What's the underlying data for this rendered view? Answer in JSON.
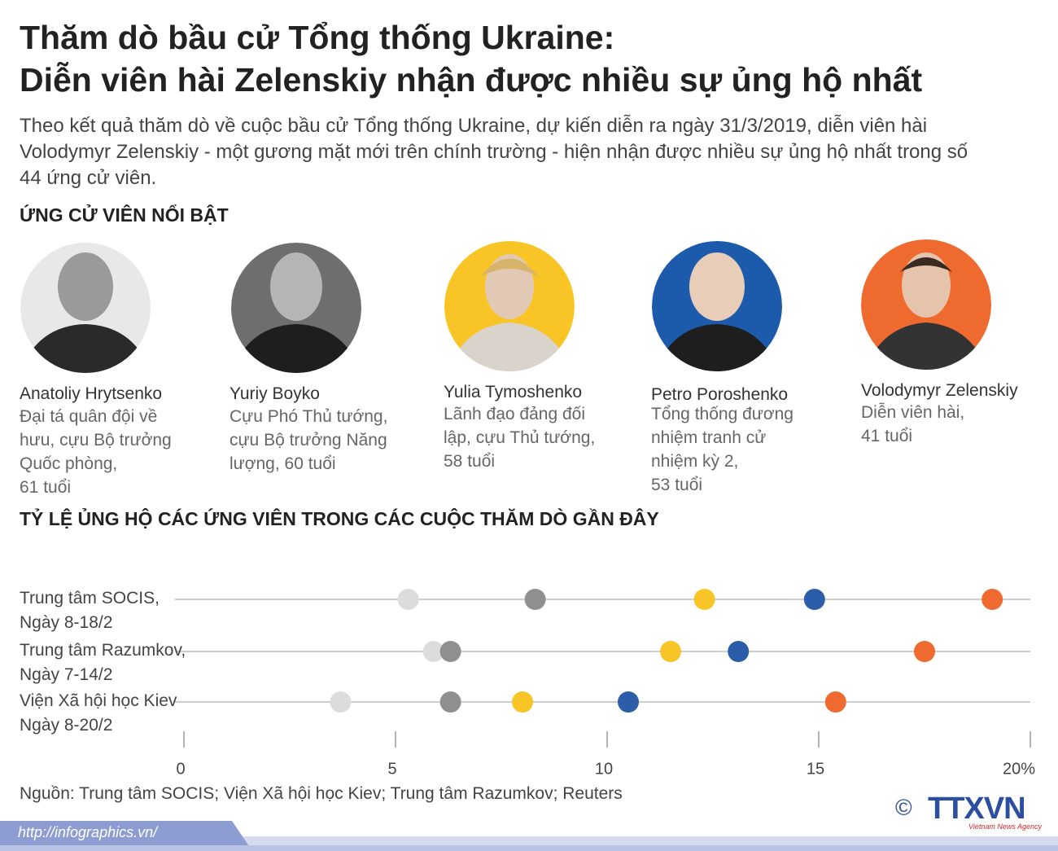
{
  "header": {
    "title": "Thăm dò bầu cử Tổng thống Ukraine:\nDiễn viên hài Zelenskiy nhận được nhiều sự ủng hộ nhất",
    "intro": "Theo kết quả thăm dò về cuộc bầu cử Tổng thống Ukraine, dự kiến diễn ra ngày 31/3/2019, diễn viên hài\nVolodymyr Zelenskiy - một gương mặt mới trên chính trường - hiện nhận được nhiều sự ủng hộ nhất trong số\n44 ứng cử viên."
  },
  "candidates_heading": "ỨNG CỬ VIÊN NỔI BẬT",
  "candidates": [
    {
      "description": "Đại tá quân đội về\nhưu, cựu Bộ trưởng\nQuốc phòng,\n61 tuổi"
    },
    {
      "description": "Cựu Phó Thủ tướng,\ncựu Bộ trưởng Năng\nlượng, 60 tuổi"
    },
    {
      "description": "Lãnh đạo đảng đối\nlập, cựu Thủ tướng,\n58 tuổi"
    },
    {
      "description": "Tổng thống đương\nnhiệm tranh cử\nnhiệm kỳ 2,\n53 tuổi"
    },
    {
      "description": "Diễn viên hài,\n41 tuổi"
    }
  ],
  "chart_data": {
    "type": "dot",
    "title": "TỶ LỆ ỦNG HỘ CÁC ỨNG VIÊN TRONG CÁC CUỘC THĂM DÒ GẦN ĐÂY",
    "categories": [
      "Trung tâm SOCIS,\nNgày 8-18/2",
      "Trung tâm Razumkov,\nNgày 7-14/2",
      "Viện Xã hội học Kiev\nNgày 8-20/2"
    ],
    "series": [
      {
        "name": "Anatoliy Hrytsenko",
        "color": "#dcdcdc",
        "values": [
          5.3,
          5.9,
          3.7
        ]
      },
      {
        "name": "Yuriy Boyko",
        "color": "#8f8f8f",
        "values": [
          8.3,
          6.3,
          6.3
        ]
      },
      {
        "name": "Yulia Tymoshenko",
        "color": "#f9c526",
        "values": [
          12.3,
          11.5,
          8.0
        ]
      },
      {
        "name": "Petro Poroshenko",
        "color": "#2c5da8",
        "values": [
          14.9,
          13.1,
          10.5
        ]
      },
      {
        "name": "Volodymyr Zelenskiy",
        "color": "#ef6a2f",
        "values": [
          19.1,
          17.5,
          15.4
        ]
      }
    ],
    "xlim": [
      0,
      20
    ],
    "xticks": [
      0,
      5,
      10,
      15,
      {
        "value": 20,
        "label": "20%"
      }
    ],
    "grid": true
  },
  "source": "Nguồn: Trung tâm SOCIS; Viện Xã hội học Kiev; Trung tâm Razumkov; Reuters",
  "footer": {
    "url": "http://infographics.vn/",
    "logo": "TTXVN",
    "logo_sub": "Vietnam News Agency",
    "copyright": "©"
  }
}
